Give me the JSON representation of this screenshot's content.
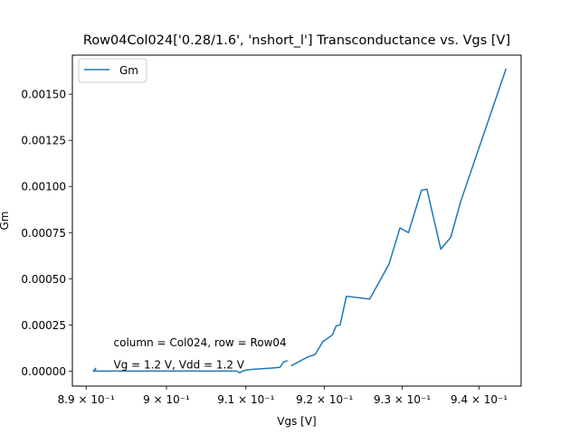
{
  "chart_data": {
    "type": "line",
    "title": "Row04Col024['0.28/1.6', 'nshort_l'] Transconductance vs. Vgs [V]",
    "xlabel": "Vgs [V]",
    "ylabel": "Gm",
    "xscale": "log",
    "xlim": [
      0.8883,
      0.9455
    ],
    "ylim": [
      -8.15e-05,
      0.0017115
    ],
    "grid": false,
    "legend_position": "upper left",
    "line_color": "#1f77b4",
    "xticks": [
      {
        "value": 0.89,
        "label": "8.9 × 10⁻¹"
      },
      {
        "value": 0.9,
        "label": "9 × 10⁻¹"
      },
      {
        "value": 0.91,
        "label": "9.1 × 10⁻¹"
      },
      {
        "value": 0.92,
        "label": "9.2 × 10⁻¹"
      },
      {
        "value": 0.93,
        "label": "9.3 × 10⁻¹"
      },
      {
        "value": 0.94,
        "label": "9.4 × 10⁻¹"
      }
    ],
    "yticks": [
      {
        "value": 0.0,
        "label": "0.00000"
      },
      {
        "value": 0.00025,
        "label": "0.00025"
      },
      {
        "value": 0.0005,
        "label": "0.00050"
      },
      {
        "value": 0.00075,
        "label": "0.00075"
      },
      {
        "value": 0.001,
        "label": "0.00100"
      },
      {
        "value": 0.00125,
        "label": "0.00125"
      },
      {
        "value": 0.0015,
        "label": "0.00150"
      }
    ],
    "series": [
      {
        "name": "Gm",
        "segments": [
          [
            [
              0.8909,
              0.0
            ],
            [
              0.8912,
              1.5e-05
            ],
            [
              0.891,
              0.0
            ],
            [
              0.895,
              0.0
            ],
            [
              0.9,
              0.0
            ],
            [
              0.905,
              0.0
            ],
            [
              0.9088,
              0.0
            ],
            [
              0.9092,
              -1e-05
            ],
            [
              0.9096,
              0.0
            ],
            [
              0.91,
              5e-06
            ],
            [
              0.911,
              1e-05
            ],
            [
              0.913,
              1.5e-05
            ],
            [
              0.9143,
              2e-05
            ],
            [
              0.9148,
              5e-05
            ],
            [
              0.9152,
              5.5e-05
            ]
          ],
          [
            [
              0.9158,
              3e-05
            ],
            [
              0.9178,
              7.5e-05
            ],
            [
              0.9188,
              9e-05
            ],
            [
              0.9198,
              0.00016
            ],
            [
              0.921,
              0.000195
            ],
            [
              0.9215,
              0.000245
            ],
            [
              0.922,
              0.00025
            ],
            [
              0.9228,
              0.000405
            ],
            [
              0.9258,
              0.00039
            ],
            [
              0.9283,
              0.00058
            ],
            [
              0.9297,
              0.000775
            ],
            [
              0.9308,
              0.00075
            ],
            [
              0.9325,
              0.00098
            ],
            [
              0.9332,
              0.000985
            ],
            [
              0.935,
              0.00066
            ],
            [
              0.9363,
              0.000725
            ],
            [
              0.9376,
              0.00092
            ],
            [
              0.9435,
              0.001635
            ]
          ]
        ]
      }
    ],
    "annotations": [
      {
        "text": "column = Col024, row = Row04",
        "x": 0.8934,
        "y": 0.00012
      },
      {
        "text": "Vg = 1.2 V, Vdd = 1.2 V",
        "x": 0.8934,
        "y": 0.0
      }
    ]
  }
}
